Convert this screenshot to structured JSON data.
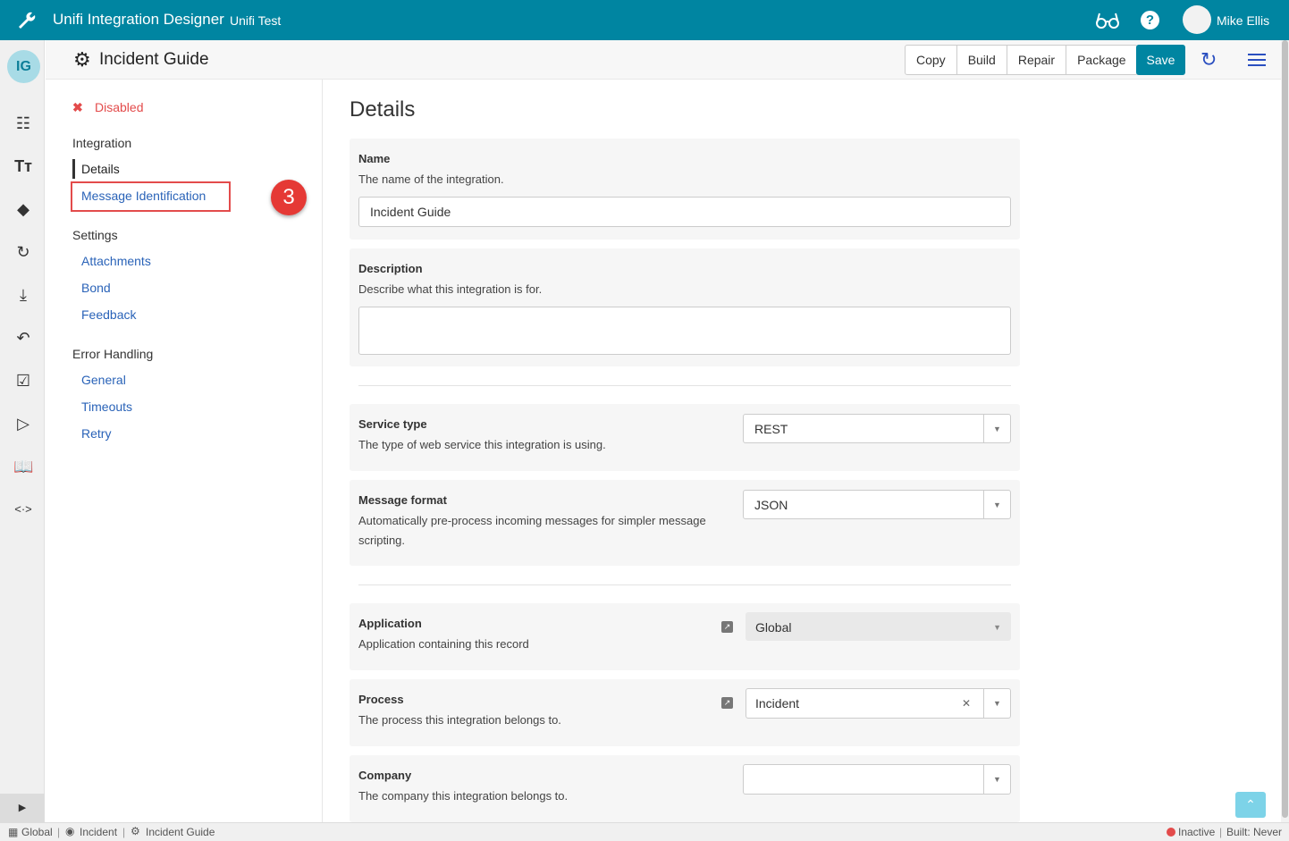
{
  "app": {
    "title": "Unifi Integration Designer",
    "subtitle": "Unifi Test",
    "user": "Mike Ellis",
    "rail_avatar": "IG",
    "brand_color": "#0085a1"
  },
  "header": {
    "title": "Incident Guide",
    "buttons": [
      "Copy",
      "Build",
      "Repair",
      "Package"
    ],
    "save": "Save"
  },
  "nav": {
    "status": "Disabled",
    "step_badge": "3",
    "sections": [
      {
        "title": "Integration",
        "items": [
          "Details",
          "Message Identification"
        ]
      },
      {
        "title": "Settings",
        "items": [
          "Attachments",
          "Bond",
          "Feedback"
        ]
      },
      {
        "title": "Error Handling",
        "items": [
          "General",
          "Timeouts",
          "Retry"
        ]
      }
    ]
  },
  "main": {
    "title": "Details",
    "name": {
      "label": "Name",
      "hint": "The name of the integration.",
      "value": "Incident Guide"
    },
    "description": {
      "label": "Description",
      "hint": "Describe what this integration is for.",
      "value": ""
    },
    "service_type": {
      "label": "Service type",
      "hint": "The type of web service this integration is using.",
      "value": "REST"
    },
    "message_format": {
      "label": "Message format",
      "hint": "Automatically pre-process incoming messages for simpler message scripting.",
      "value": "JSON"
    },
    "application": {
      "label": "Application",
      "hint": "Application containing this record",
      "value": "Global"
    },
    "process": {
      "label": "Process",
      "hint": "The process this integration belongs to.",
      "value": "Incident"
    },
    "company": {
      "label": "Company",
      "hint": "The company this integration belongs to.",
      "value": ""
    }
  },
  "footer": {
    "scope": "Global",
    "table": "Incident",
    "record": "Incident Guide",
    "state": "Inactive",
    "built": "Built: Never"
  }
}
